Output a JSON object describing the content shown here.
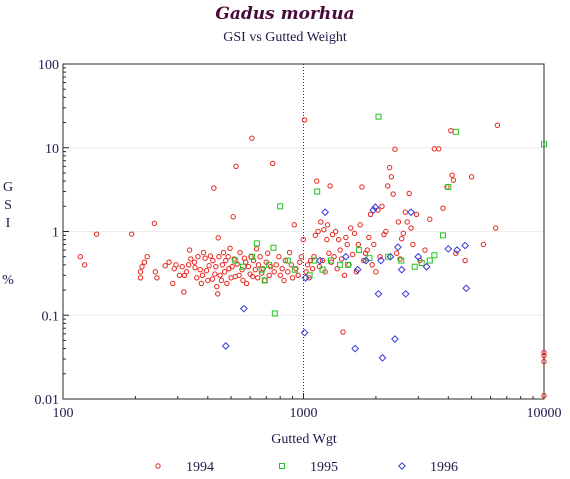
{
  "chart_data": {
    "type": "scatter",
    "title": "Gadus morhua",
    "subtitle": "GSI vs Gutted Weight",
    "xlabel": "Gutted Wgt",
    "ylabel": [
      "G",
      "S",
      "I",
      "%"
    ],
    "x_scale": "log",
    "y_scale": "log",
    "xlim": [
      100,
      10000
    ],
    "ylim": [
      0.01,
      100
    ],
    "x_ticks": [
      {
        "value": 100,
        "label": "100"
      },
      {
        "value": 1000,
        "label": "1000"
      },
      {
        "value": 10000,
        "label": "10000"
      }
    ],
    "y_ticks": [
      {
        "value": 0.01,
        "label": "0.01"
      },
      {
        "value": 0.1,
        "label": "0.1"
      },
      {
        "value": 1,
        "label": "1"
      },
      {
        "value": 10,
        "label": "10"
      },
      {
        "value": 100,
        "label": "100"
      }
    ],
    "reference_lines_x": [
      1000,
      10000
    ],
    "grid": true,
    "legend_position": "bottom",
    "series": [
      {
        "name": "1994",
        "marker": "circle",
        "color": "#e8251e",
        "points": [
          [
            118,
            0.5
          ],
          [
            123,
            0.4
          ],
          [
            138,
            0.93
          ],
          [
            193,
            0.93
          ],
          [
            210,
            0.33
          ],
          [
            210,
            0.28
          ],
          [
            213,
            0.38
          ],
          [
            218,
            0.43
          ],
          [
            224,
            0.5
          ],
          [
            240,
            1.25
          ],
          [
            242,
            0.33
          ],
          [
            246,
            0.28
          ],
          [
            266,
            0.39
          ],
          [
            276,
            0.43
          ],
          [
            286,
            0.24
          ],
          [
            290,
            0.36
          ],
          [
            295,
            0.4
          ],
          [
            305,
            0.3
          ],
          [
            313,
            0.38
          ],
          [
            318,
            0.19
          ],
          [
            320,
            0.3
          ],
          [
            326,
            0.33
          ],
          [
            333,
            0.4
          ],
          [
            336,
            0.6
          ],
          [
            340,
            0.47
          ],
          [
            352,
            0.43
          ],
          [
            354,
            0.37
          ],
          [
            360,
            0.28
          ],
          [
            364,
            0.5
          ],
          [
            372,
            0.35
          ],
          [
            376,
            0.24
          ],
          [
            380,
            0.3
          ],
          [
            384,
            0.56
          ],
          [
            390,
            0.48
          ],
          [
            395,
            0.34
          ],
          [
            400,
            0.26
          ],
          [
            405,
            0.39
          ],
          [
            410,
            0.51
          ],
          [
            418,
            0.27
          ],
          [
            420,
            0.45
          ],
          [
            424,
            3.3
          ],
          [
            428,
            0.31
          ],
          [
            432,
            0.38
          ],
          [
            436,
            0.22
          ],
          [
            440,
            0.18
          ],
          [
            442,
            0.84
          ],
          [
            445,
            0.5
          ],
          [
            450,
            0.3
          ],
          [
            456,
            0.26
          ],
          [
            460,
            0.4
          ],
          [
            465,
            0.56
          ],
          [
            470,
            0.33
          ],
          [
            475,
            0.45
          ],
          [
            480,
            0.24
          ],
          [
            486,
            0.5
          ],
          [
            490,
            0.36
          ],
          [
            495,
            0.63
          ],
          [
            500,
            0.28
          ],
          [
            505,
            0.38
          ],
          [
            510,
            1.5
          ],
          [
            515,
            0.47
          ],
          [
            520,
            0.29
          ],
          [
            524,
            6.0
          ],
          [
            530,
            0.41
          ],
          [
            540,
            0.3
          ],
          [
            545,
            0.56
          ],
          [
            555,
            0.35
          ],
          [
            560,
            0.26
          ],
          [
            568,
            0.48
          ],
          [
            575,
            0.43
          ],
          [
            580,
            0.24
          ],
          [
            590,
            0.38
          ],
          [
            600,
            0.31
          ],
          [
            605,
            0.5
          ],
          [
            610,
            13.0
          ],
          [
            615,
            0.29
          ],
          [
            620,
            0.45
          ],
          [
            630,
            0.35
          ],
          [
            638,
            0.62
          ],
          [
            645,
            0.28
          ],
          [
            650,
            0.4
          ],
          [
            660,
            0.5
          ],
          [
            670,
            0.32
          ],
          [
            680,
            0.36
          ],
          [
            690,
            0.26
          ],
          [
            700,
            0.43
          ],
          [
            710,
            0.55
          ],
          [
            720,
            0.3
          ],
          [
            730,
            0.38
          ],
          [
            745,
            6.5
          ],
          [
            755,
            0.33
          ],
          [
            770,
            0.4
          ],
          [
            790,
            0.5
          ],
          [
            800,
            0.3
          ],
          [
            815,
            0.36
          ],
          [
            830,
            0.26
          ],
          [
            840,
            0.45
          ],
          [
            860,
            0.33
          ],
          [
            875,
            0.56
          ],
          [
            890,
            0.4
          ],
          [
            900,
            0.28
          ],
          [
            915,
            1.2
          ],
          [
            930,
            0.36
          ],
          [
            950,
            0.3
          ],
          [
            965,
            0.43
          ],
          [
            980,
            0.5
          ],
          [
            998,
            0.8
          ],
          [
            1010,
            21.5
          ],
          [
            1025,
            0.33
          ],
          [
            1040,
            0.4
          ],
          [
            1055,
            0.28
          ],
          [
            1070,
            0.45
          ],
          [
            1090,
            0.36
          ],
          [
            1105,
            0.5
          ],
          [
            1120,
            0.9
          ],
          [
            1135,
            4.0
          ],
          [
            1150,
            1.0
          ],
          [
            1165,
            0.38
          ],
          [
            1180,
            1.3
          ],
          [
            1200,
            0.45
          ],
          [
            1215,
            1.05
          ],
          [
            1230,
            0.33
          ],
          [
            1250,
            0.8
          ],
          [
            1260,
            1.2
          ],
          [
            1275,
            0.55
          ],
          [
            1290,
            3.5
          ],
          [
            1305,
            0.43
          ],
          [
            1320,
            0.92
          ],
          [
            1340,
            0.5
          ],
          [
            1360,
            1.0
          ],
          [
            1380,
            0.36
          ],
          [
            1400,
            0.8
          ],
          [
            1420,
            0.6
          ],
          [
            1440,
            0.47
          ],
          [
            1460,
            0.063
          ],
          [
            1480,
            0.3
          ],
          [
            1500,
            0.85
          ],
          [
            1520,
            0.7
          ],
          [
            1545,
            0.4
          ],
          [
            1570,
            1.1
          ],
          [
            1600,
            0.53
          ],
          [
            1630,
            0.95
          ],
          [
            1660,
            0.33
          ],
          [
            1690,
            0.7
          ],
          [
            1720,
            1.2
          ],
          [
            1750,
            3.4
          ],
          [
            1780,
            0.45
          ],
          [
            1810,
            0.55
          ],
          [
            1840,
            0.6
          ],
          [
            1870,
            0.85
          ],
          [
            1900,
            1.6
          ],
          [
            1930,
            0.4
          ],
          [
            1960,
            0.7
          ],
          [
            2000,
            0.33
          ],
          [
            2040,
            1.8
          ],
          [
            2080,
            0.5
          ],
          [
            2120,
            2.0
          ],
          [
            2160,
            0.92
          ],
          [
            2200,
            1.0
          ],
          [
            2240,
            3.5
          ],
          [
            2280,
            5.8
          ],
          [
            2320,
            4.5
          ],
          [
            2360,
            2.8
          ],
          [
            2400,
            9.6
          ],
          [
            2440,
            0.55
          ],
          [
            2480,
            1.3
          ],
          [
            2520,
            0.47
          ],
          [
            2560,
            0.82
          ],
          [
            2600,
            0.95
          ],
          [
            2650,
            1.7
          ],
          [
            2700,
            1.3
          ],
          [
            2750,
            2.85
          ],
          [
            2800,
            1.1
          ],
          [
            2850,
            0.7
          ],
          [
            2950,
            1.6
          ],
          [
            3050,
            0.45
          ],
          [
            3200,
            0.6
          ],
          [
            3350,
            1.4
          ],
          [
            3500,
            9.7
          ],
          [
            3650,
            9.7
          ],
          [
            3800,
            1.9
          ],
          [
            3950,
            3.4
          ],
          [
            4100,
            16.0
          ],
          [
            4150,
            4.7
          ],
          [
            4200,
            4.1
          ],
          [
            4300,
            0.55
          ],
          [
            4700,
            0.45
          ],
          [
            5000,
            4.5
          ],
          [
            5600,
            0.7
          ],
          [
            6300,
            1.1
          ],
          [
            6400,
            18.5
          ],
          [
            10000,
            0.036
          ],
          [
            10000,
            0.033
          ],
          [
            10000,
            0.028
          ],
          [
            10000,
            0.011
          ]
        ]
      },
      {
        "name": "1995",
        "marker": "square",
        "color": "#22c41e",
        "points": [
          [
            520,
            0.45
          ],
          [
            560,
            0.38
          ],
          [
            610,
            0.5
          ],
          [
            640,
            0.72
          ],
          [
            670,
            0.35
          ],
          [
            690,
            0.26
          ],
          [
            720,
            0.4
          ],
          [
            750,
            0.64
          ],
          [
            760,
            0.105
          ],
          [
            800,
            2.0
          ],
          [
            860,
            0.45
          ],
          [
            920,
            0.35
          ],
          [
            1060,
            0.3
          ],
          [
            1110,
            0.45
          ],
          [
            1140,
            3.0
          ],
          [
            1200,
            0.35
          ],
          [
            1300,
            0.45
          ],
          [
            1420,
            0.4
          ],
          [
            1530,
            0.4
          ],
          [
            1700,
            0.6
          ],
          [
            1880,
            0.48
          ],
          [
            2050,
            23.5
          ],
          [
            2250,
            0.5
          ],
          [
            2550,
            0.45
          ],
          [
            2900,
            0.38
          ],
          [
            3100,
            0.42
          ],
          [
            3350,
            0.45
          ],
          [
            3500,
            0.52
          ],
          [
            3800,
            0.9
          ],
          [
            4000,
            3.4
          ],
          [
            4300,
            15.5
          ],
          [
            10000,
            11.0
          ]
        ]
      },
      {
        "name": "1996",
        "marker": "diamond",
        "color": "#3a3adc",
        "points": [
          [
            475,
            0.043
          ],
          [
            565,
            0.12
          ],
          [
            1010,
            0.062
          ],
          [
            1020,
            0.28
          ],
          [
            1170,
            0.45
          ],
          [
            1230,
            1.7
          ],
          [
            1500,
            0.5
          ],
          [
            1640,
            0.04
          ],
          [
            1680,
            0.35
          ],
          [
            1820,
            0.45
          ],
          [
            1950,
            1.8
          ],
          [
            1990,
            1.95
          ],
          [
            2050,
            0.18
          ],
          [
            2100,
            0.45
          ],
          [
            2130,
            0.031
          ],
          [
            2300,
            0.5
          ],
          [
            2400,
            0.052
          ],
          [
            2470,
            0.65
          ],
          [
            2560,
            0.35
          ],
          [
            2660,
            0.18
          ],
          [
            2800,
            1.7
          ],
          [
            3000,
            0.5
          ],
          [
            3250,
            0.38
          ],
          [
            4000,
            0.62
          ],
          [
            4350,
            0.6
          ],
          [
            4700,
            0.68
          ],
          [
            4750,
            0.21
          ]
        ]
      }
    ]
  }
}
